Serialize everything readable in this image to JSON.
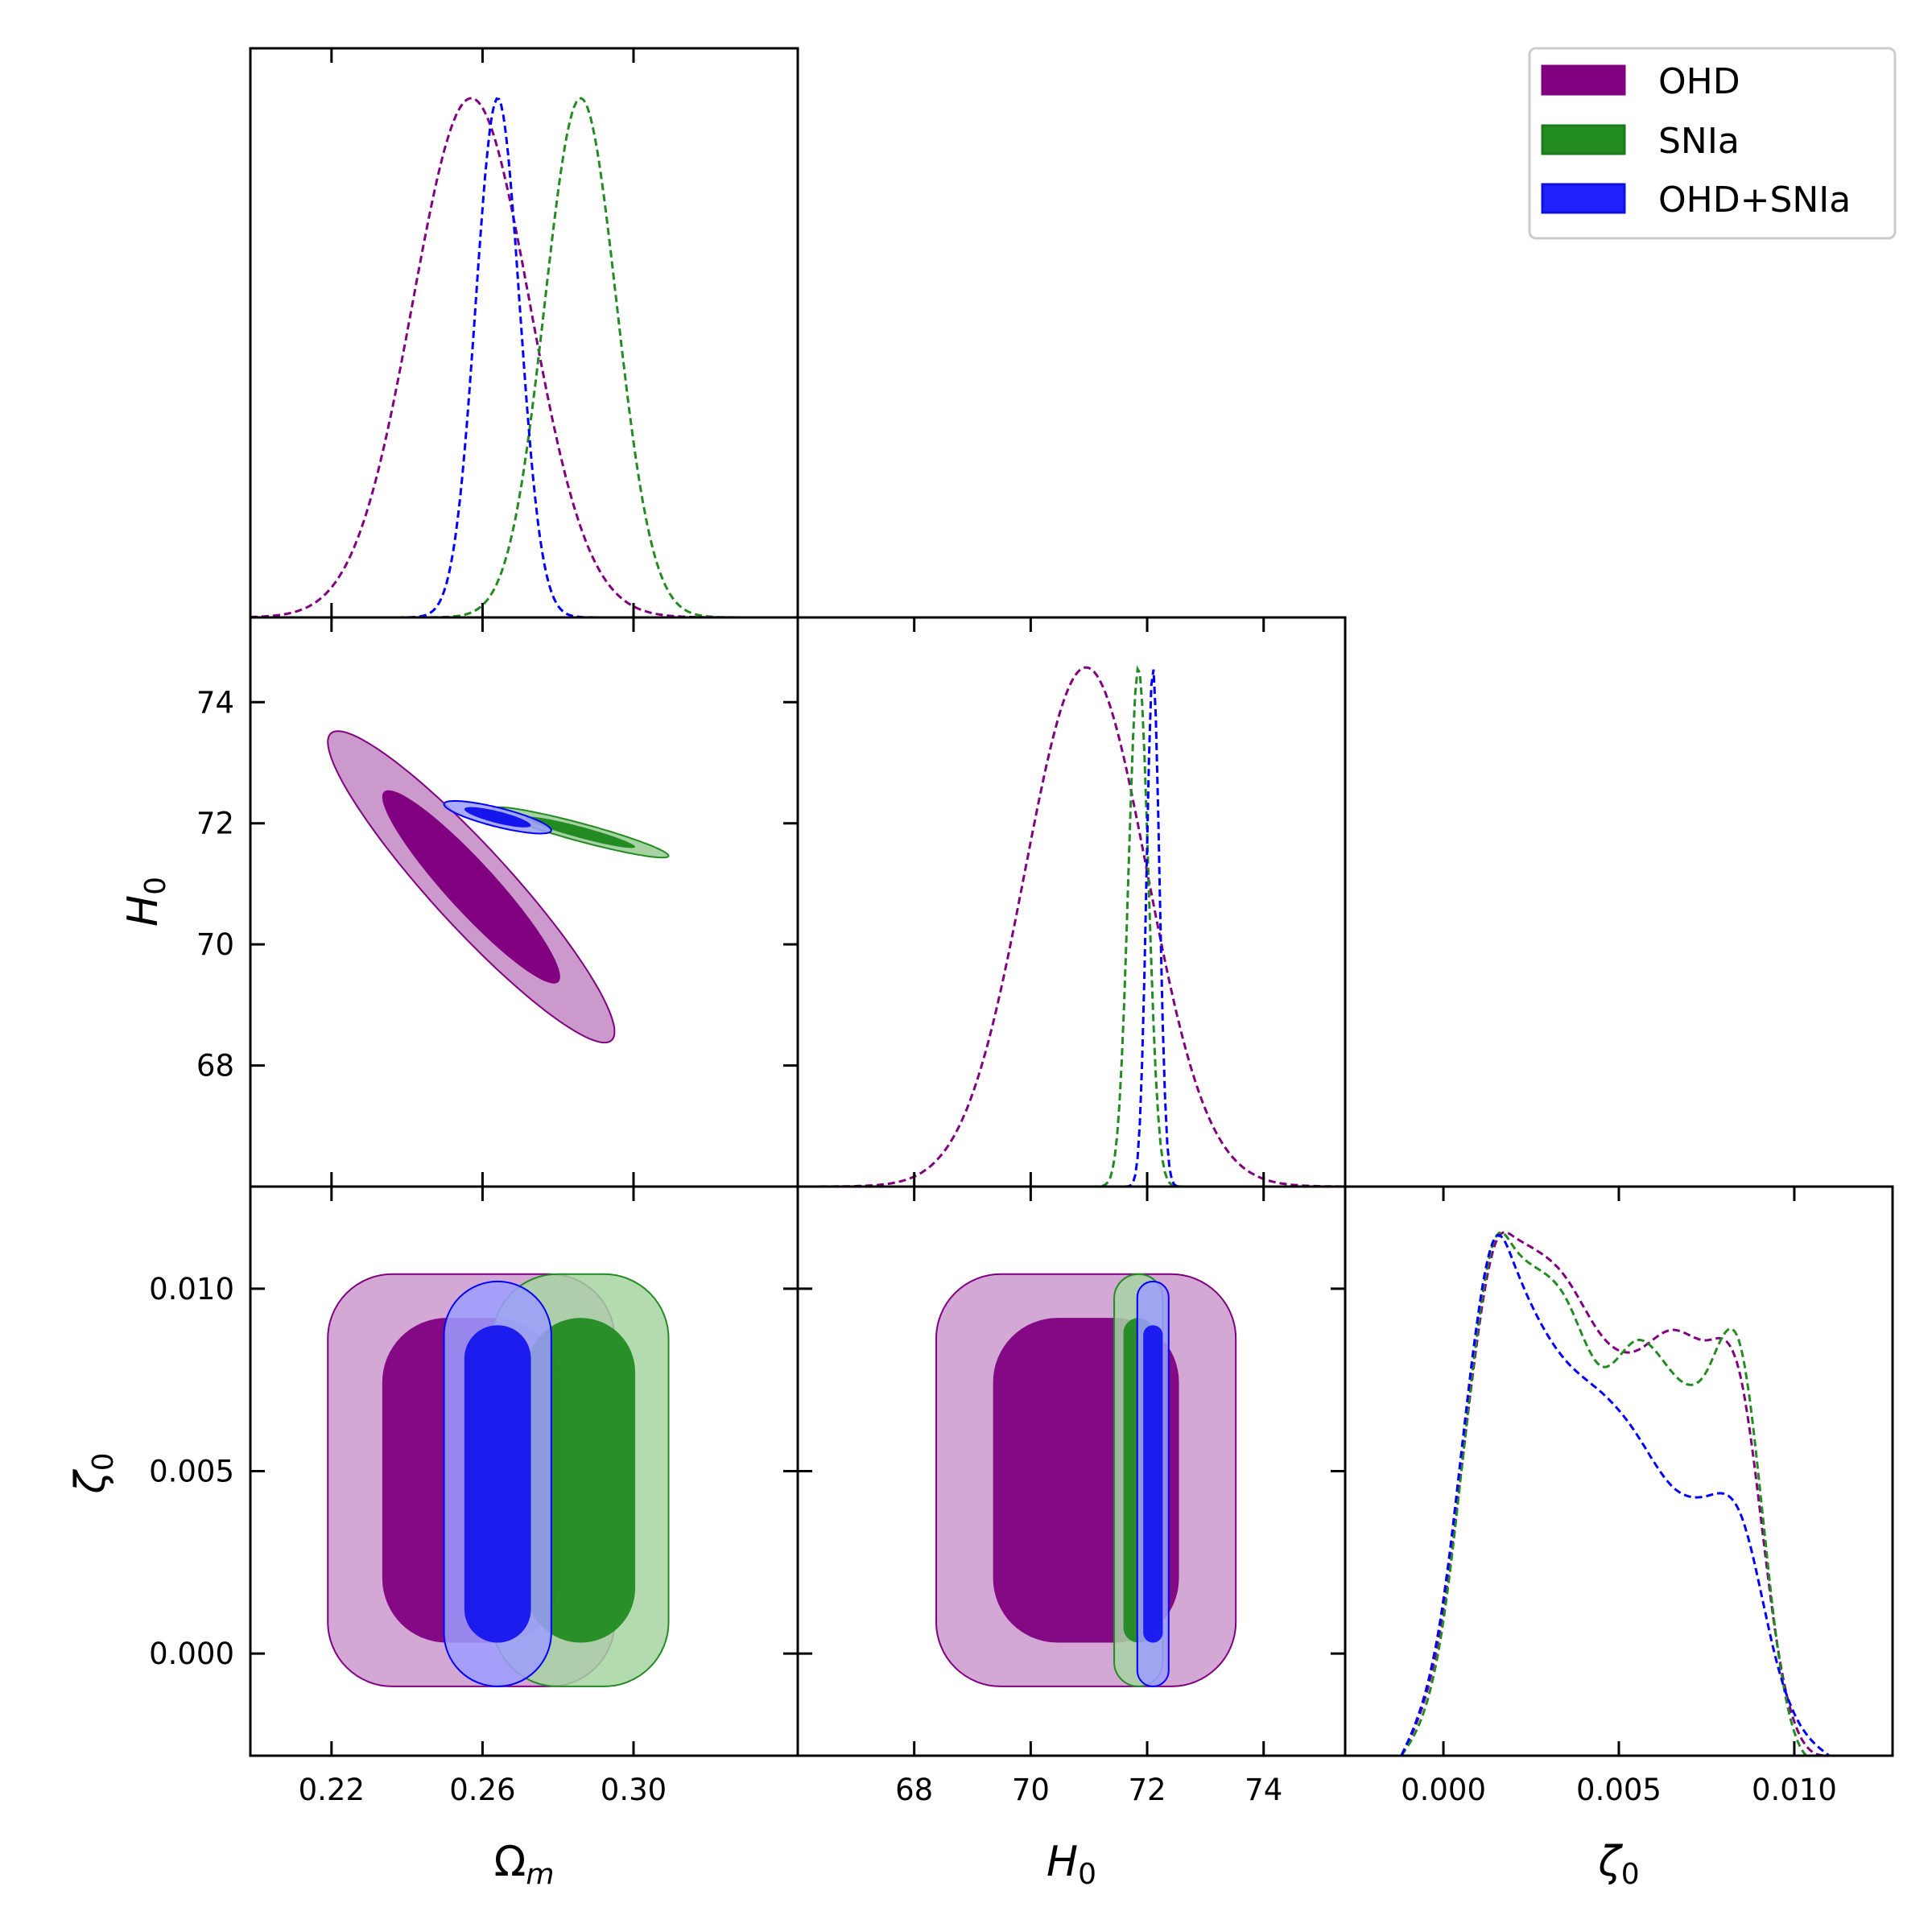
{
  "chart_data": {
    "type": "triangle-corner-plot",
    "parameters": [
      {
        "id": "Om",
        "label": "Ωm",
        "label_base": "Ω",
        "label_sub": "m",
        "range": [
          0.1985,
          0.3435
        ],
        "ticks": [
          0.22,
          0.26,
          0.3
        ],
        "tick_labels": [
          "0.22",
          "0.26",
          "0.30"
        ]
      },
      {
        "id": "H0",
        "label": "H0",
        "label_base": "H",
        "label_sub": "0",
        "range": [
          66.0,
          75.4
        ],
        "ticks": [
          68,
          70,
          72,
          74
        ],
        "tick_labels": [
          "68",
          "70",
          "72",
          "74"
        ]
      },
      {
        "id": "zeta0",
        "label": "ζ0",
        "label_base": "ζ",
        "label_sub": "0",
        "range": [
          -0.0028,
          0.0128
        ],
        "ticks": [
          0.0,
          0.005,
          0.01
        ],
        "tick_labels": [
          "0.000",
          "0.005",
          "0.010"
        ]
      }
    ],
    "legend": {
      "position": "top-right",
      "entries": [
        {
          "label": "OHD",
          "color": "#800080"
        },
        {
          "label": "SNIa",
          "color": "#228B22"
        },
        {
          "label": "OHD+SNIa",
          "color": "#0000FF"
        }
      ]
    },
    "series": [
      {
        "name": "OHD",
        "color": "#800080",
        "Om": {
          "mean": 0.257,
          "sigma": 0.0155
        },
        "H0": {
          "mean": 70.95,
          "sigma": 1.05
        },
        "zeta0": {
          "min": 0.0,
          "max": 0.0095
        },
        "corr_Om_H0": -0.93
      },
      {
        "name": "SNIa",
        "color": "#228B22",
        "Om": {
          "mean": 0.286,
          "sigma": 0.0095
        },
        "H0": {
          "mean": 71.85,
          "sigma": 0.17
        },
        "zeta0": {
          "min": 0.0,
          "max": 0.0095
        },
        "corr_Om_H0": -0.93
      },
      {
        "name": "OHD+SNIa",
        "color": "#0000FF",
        "Om": {
          "mean": 0.264,
          "sigma": 0.0058
        },
        "H0": {
          "mean": 72.1,
          "sigma": 0.11
        },
        "zeta0": {
          "min": 0.0,
          "max": 0.0093
        },
        "corr_Om_H0": -0.8
      }
    ],
    "zeta0_marginals": {
      "x": [
        -0.0012,
        0.0,
        0.0015,
        0.002,
        0.0035,
        0.0045,
        0.0055,
        0.0065,
        0.0075,
        0.0085,
        0.0095,
        0.011
      ],
      "OHD": [
        0.0,
        0.28,
        0.99,
        1.0,
        0.92,
        0.81,
        0.78,
        0.82,
        0.8,
        0.72,
        0.22,
        0.0
      ],
      "SNIa": [
        0.0,
        0.26,
        1.0,
        0.98,
        0.88,
        0.75,
        0.8,
        0.74,
        0.74,
        0.78,
        0.22,
        0.0
      ],
      "OHD+SNIa": [
        0.0,
        0.3,
        1.0,
        0.95,
        0.76,
        0.7,
        0.62,
        0.52,
        0.5,
        0.46,
        0.18,
        0.0
      ]
    },
    "grid": false,
    "contour_levels": [
      "68%",
      "95%"
    ]
  }
}
